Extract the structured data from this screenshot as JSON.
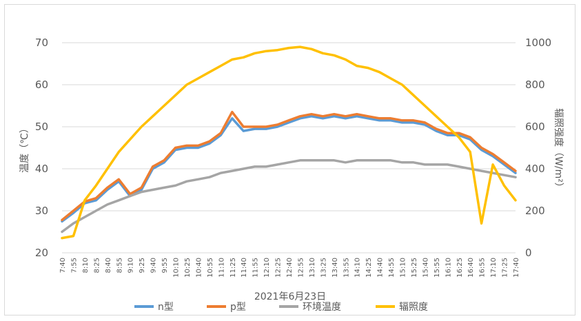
{
  "chart_data": {
    "type": "line",
    "xlabel": "2021年6月23日",
    "ylabel_left": "温度（℃）",
    "ylabel_right": "辐照强度（W/m²）",
    "ylim_left": [
      20,
      70
    ],
    "ylim_right": [
      0,
      1000
    ],
    "yticks_left": [
      20,
      30,
      40,
      50,
      60,
      70
    ],
    "yticks_right": [
      0,
      200,
      400,
      600,
      800,
      1000
    ],
    "grid": true,
    "legend_position": "bottom",
    "x": [
      "7:40",
      "7:55",
      "8:10",
      "8:25",
      "8:40",
      "8:55",
      "9:10",
      "9:25",
      "9:40",
      "9:55",
      "10:10",
      "10:25",
      "10:40",
      "10:55",
      "11:10",
      "11:25",
      "11:40",
      "11:55",
      "12:10",
      "12:25",
      "12:40",
      "12:55",
      "13:10",
      "13:25",
      "13:40",
      "13:55",
      "14:10",
      "14:25",
      "14:40",
      "14:55",
      "15:10",
      "15:25",
      "15:40",
      "15:55",
      "16:10",
      "16:25",
      "16:40",
      "16:55",
      "17:10",
      "17:25",
      "17:40"
    ],
    "series": [
      {
        "name": "n型",
        "axis": "left",
        "color": "#5b9bd5",
        "values": [
          27.5,
          29.5,
          31.8,
          32.5,
          35,
          37,
          33.5,
          35,
          40,
          41.5,
          44.5,
          45,
          45,
          46,
          48,
          52,
          49,
          49.5,
          49.5,
          50,
          51,
          52,
          52.5,
          52,
          52.5,
          52,
          52.5,
          52,
          51.5,
          51.5,
          51,
          51,
          50.5,
          49,
          48,
          48,
          47,
          44.5,
          43,
          41,
          39
        ]
      },
      {
        "name": "p型",
        "axis": "left",
        "color": "#ed7d31",
        "values": [
          27.8,
          30,
          32.2,
          33,
          35.5,
          37.5,
          34,
          35.5,
          40.5,
          42,
          45,
          45.5,
          45.5,
          46.5,
          48.5,
          53.5,
          50,
          50,
          50,
          50.5,
          51.5,
          52.5,
          53,
          52.5,
          53,
          52.5,
          53,
          52.5,
          52,
          52,
          51.5,
          51.5,
          51,
          49.5,
          48.5,
          48.5,
          47.5,
          45,
          43.5,
          41.5,
          39.5
        ]
      },
      {
        "name": "环境温度",
        "axis": "left",
        "color": "#a5a5a5",
        "values": [
          25,
          27,
          28.5,
          30,
          31.5,
          32.5,
          33.5,
          34.5,
          35,
          35.5,
          36,
          37,
          37.5,
          38,
          39,
          39.5,
          40,
          40.5,
          40.5,
          41,
          41.5,
          42,
          42,
          42,
          42,
          41.5,
          42,
          42,
          42,
          42,
          41.5,
          41.5,
          41,
          41,
          41,
          40.5,
          40,
          39.5,
          39,
          38.5,
          38
        ]
      },
      {
        "name": "辐照度",
        "axis": "right",
        "color": "#ffc000",
        "values": [
          70,
          80,
          250,
          320,
          400,
          480,
          540,
          600,
          650,
          700,
          750,
          800,
          830,
          860,
          890,
          920,
          930,
          950,
          960,
          965,
          975,
          980,
          970,
          950,
          940,
          920,
          890,
          880,
          860,
          830,
          800,
          750,
          700,
          650,
          600,
          550,
          480,
          140,
          420,
          320,
          250
        ]
      }
    ]
  }
}
